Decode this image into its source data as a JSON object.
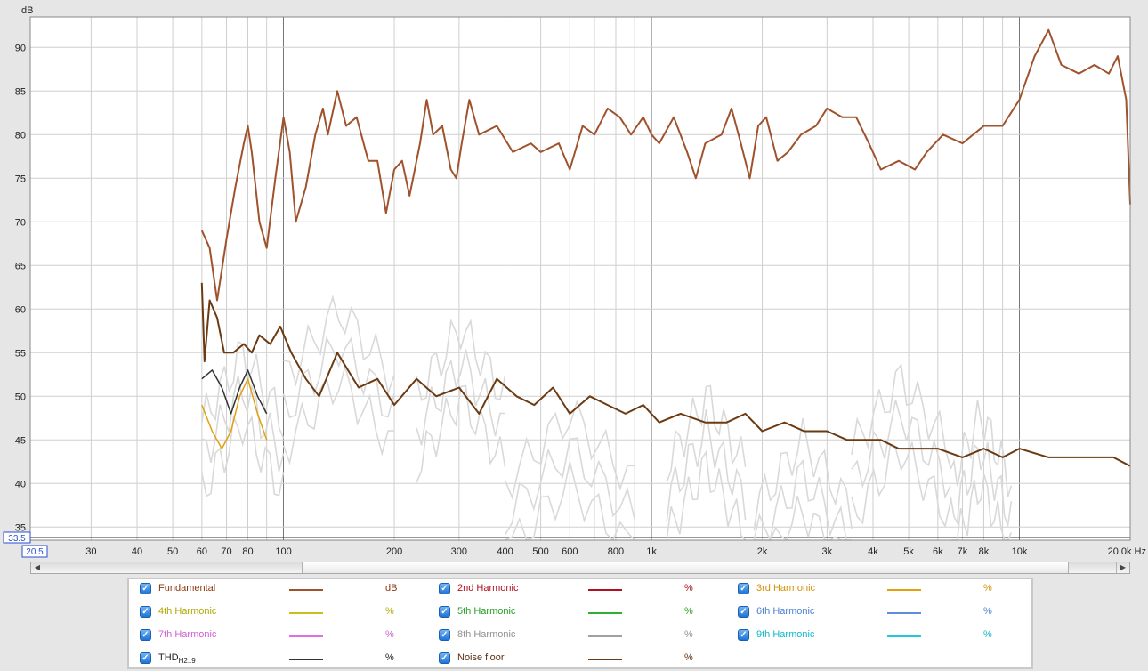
{
  "chart_data": {
    "type": "line",
    "y_unit": "dB",
    "y_ticks": [
      35,
      40,
      45,
      50,
      55,
      60,
      65,
      70,
      75,
      80,
      85,
      90
    ],
    "ylim": [
      33.5,
      93.5
    ],
    "x_scale": "log",
    "xlim": [
      20.5,
      20000
    ],
    "x_ticks": [
      {
        "v": 30,
        "label": "30"
      },
      {
        "v": 40,
        "label": "40"
      },
      {
        "v": 50,
        "label": "50"
      },
      {
        "v": 60,
        "label": "60"
      },
      {
        "v": 70,
        "label": "70"
      },
      {
        "v": 80,
        "label": "80"
      },
      {
        "v": 100,
        "label": "100"
      },
      {
        "v": 200,
        "label": "200"
      },
      {
        "v": 300,
        "label": "300"
      },
      {
        "v": 400,
        "label": "400"
      },
      {
        "v": 500,
        "label": "500"
      },
      {
        "v": 600,
        "label": "600"
      },
      {
        "v": 800,
        "label": "800"
      },
      {
        "v": 1000,
        "label": "1k"
      },
      {
        "v": 2000,
        "label": "2k"
      },
      {
        "v": 3000,
        "label": "3k"
      },
      {
        "v": 4000,
        "label": "4k"
      },
      {
        "v": 5000,
        "label": "5k"
      },
      {
        "v": 6000,
        "label": "6k"
      },
      {
        "v": 7000,
        "label": "7k"
      },
      {
        "v": 8000,
        "label": "8k"
      },
      {
        "v": 10000,
        "label": "10k"
      },
      {
        "v": 20000,
        "label": "20.0k Hz"
      }
    ],
    "x_min_label": "20.5",
    "y_min_label": "33.5",
    "series": [
      {
        "name": "Fundamental",
        "color": "#a0522d",
        "points": [
          [
            60,
            69
          ],
          [
            63,
            67
          ],
          [
            66,
            61
          ],
          [
            70,
            68
          ],
          [
            74,
            74
          ],
          [
            78,
            79
          ],
          [
            80,
            81
          ],
          [
            82,
            78
          ],
          [
            86,
            70
          ],
          [
            90,
            67
          ],
          [
            95,
            75
          ],
          [
            100,
            82
          ],
          [
            104,
            78
          ],
          [
            108,
            70
          ],
          [
            115,
            74
          ],
          [
            122,
            80
          ],
          [
            128,
            83
          ],
          [
            132,
            80
          ],
          [
            140,
            85
          ],
          [
            148,
            81
          ],
          [
            158,
            82
          ],
          [
            170,
            77
          ],
          [
            180,
            77
          ],
          [
            190,
            71
          ],
          [
            200,
            76
          ],
          [
            210,
            77
          ],
          [
            220,
            73
          ],
          [
            235,
            79
          ],
          [
            245,
            84
          ],
          [
            255,
            80
          ],
          [
            270,
            81
          ],
          [
            285,
            76
          ],
          [
            295,
            75
          ],
          [
            305,
            79
          ],
          [
            320,
            84
          ],
          [
            340,
            80
          ],
          [
            380,
            81
          ],
          [
            420,
            78
          ],
          [
            470,
            79
          ],
          [
            500,
            78
          ],
          [
            560,
            79
          ],
          [
            600,
            76
          ],
          [
            650,
            81
          ],
          [
            700,
            80
          ],
          [
            760,
            83
          ],
          [
            820,
            82
          ],
          [
            880,
            80
          ],
          [
            950,
            82
          ],
          [
            1000,
            80
          ],
          [
            1050,
            79
          ],
          [
            1150,
            82
          ],
          [
            1250,
            78
          ],
          [
            1320,
            75
          ],
          [
            1400,
            79
          ],
          [
            1550,
            80
          ],
          [
            1650,
            83
          ],
          [
            1750,
            79
          ],
          [
            1850,
            75
          ],
          [
            1950,
            81
          ],
          [
            2050,
            82
          ],
          [
            2200,
            77
          ],
          [
            2350,
            78
          ],
          [
            2550,
            80
          ],
          [
            2800,
            81
          ],
          [
            3000,
            83
          ],
          [
            3300,
            82
          ],
          [
            3600,
            82
          ],
          [
            3900,
            79
          ],
          [
            4200,
            76
          ],
          [
            4700,
            77
          ],
          [
            5200,
            76
          ],
          [
            5600,
            78
          ],
          [
            6200,
            80
          ],
          [
            7000,
            79
          ],
          [
            8000,
            81
          ],
          [
            9000,
            81
          ],
          [
            10000,
            84
          ],
          [
            11000,
            89
          ],
          [
            12000,
            92
          ],
          [
            13000,
            88
          ],
          [
            14500,
            87
          ],
          [
            16000,
            88
          ],
          [
            17500,
            87
          ],
          [
            18500,
            89
          ],
          [
            19500,
            84
          ],
          [
            20000,
            72
          ]
        ]
      },
      {
        "name": "Noise floor",
        "color": "#6b3a12",
        "points": [
          [
            60,
            63
          ],
          [
            61,
            54
          ],
          [
            63,
            61
          ],
          [
            66,
            59
          ],
          [
            69,
            55
          ],
          [
            73,
            55
          ],
          [
            78,
            56
          ],
          [
            82,
            55
          ],
          [
            86,
            57
          ],
          [
            92,
            56
          ],
          [
            98,
            58
          ],
          [
            105,
            55
          ],
          [
            115,
            52
          ],
          [
            125,
            50
          ],
          [
            140,
            55
          ],
          [
            160,
            51
          ],
          [
            180,
            52
          ],
          [
            200,
            49
          ],
          [
            230,
            52
          ],
          [
            260,
            50
          ],
          [
            300,
            51
          ],
          [
            340,
            48
          ],
          [
            380,
            52
          ],
          [
            430,
            50
          ],
          [
            480,
            49
          ],
          [
            540,
            51
          ],
          [
            600,
            48
          ],
          [
            680,
            50
          ],
          [
            760,
            49
          ],
          [
            850,
            48
          ],
          [
            950,
            49
          ],
          [
            1050,
            47
          ],
          [
            1200,
            48
          ],
          [
            1400,
            47
          ],
          [
            1600,
            47
          ],
          [
            1800,
            48
          ],
          [
            2000,
            46
          ],
          [
            2300,
            47
          ],
          [
            2600,
            46
          ],
          [
            3000,
            46
          ],
          [
            3400,
            45
          ],
          [
            3800,
            45
          ],
          [
            4200,
            45
          ],
          [
            4700,
            44
          ],
          [
            5300,
            44
          ],
          [
            6000,
            44
          ],
          [
            7000,
            43
          ],
          [
            8000,
            44
          ],
          [
            9000,
            43
          ],
          [
            10000,
            44
          ],
          [
            12000,
            43
          ],
          [
            14000,
            43
          ],
          [
            16000,
            43
          ],
          [
            18000,
            43
          ],
          [
            20000,
            42
          ]
        ]
      },
      {
        "name": "THD",
        "color": "#333333",
        "points": [
          [
            60,
            52
          ],
          [
            64,
            53
          ],
          [
            68,
            51
          ],
          [
            72,
            48
          ],
          [
            76,
            51
          ],
          [
            80,
            53
          ],
          [
            85,
            50
          ],
          [
            90,
            48
          ]
        ]
      },
      {
        "name": "3rd Harmonic",
        "color": "#e0a010",
        "points": [
          [
            60,
            49
          ],
          [
            64,
            46
          ],
          [
            68,
            44
          ],
          [
            72,
            46
          ],
          [
            76,
            50
          ],
          [
            80,
            52
          ],
          [
            85,
            48
          ],
          [
            90,
            45
          ]
        ]
      }
    ]
  },
  "legend": [
    {
      "name": "Fundamental",
      "sub": "",
      "color": "#a0522d",
      "unit": "dB",
      "text_color": "#8b3a0e"
    },
    {
      "name": "2nd Harmonic",
      "sub": "",
      "color": "#b01020",
      "unit": "%",
      "text_color": "#b01020"
    },
    {
      "name": "3rd Harmonic",
      "sub": "",
      "color": "#e0a010",
      "unit": "%",
      "text_color": "#d4930a"
    },
    {
      "name": "4th Harmonic",
      "sub": "",
      "color": "#c8c020",
      "unit": "%",
      "text_color": "#b0a800"
    },
    {
      "name": "5th Harmonic",
      "sub": "",
      "color": "#30b030",
      "unit": "%",
      "text_color": "#22a022"
    },
    {
      "name": "6th Harmonic",
      "sub": "",
      "color": "#5b8fd8",
      "unit": "%",
      "text_color": "#4a7fd0"
    },
    {
      "name": "7th Harmonic",
      "sub": "",
      "color": "#e070e0",
      "unit": "%",
      "text_color": "#d060d0"
    },
    {
      "name": "8th Harmonic",
      "sub": "",
      "color": "#a0a0a0",
      "unit": "%",
      "text_color": "#909090"
    },
    {
      "name": "9th Harmonic",
      "sub": "",
      "color": "#20c8d8",
      "unit": "%",
      "text_color": "#10b8c8"
    },
    {
      "name": "THD",
      "sub": "H2..9",
      "color": "#333333",
      "unit": "%",
      "text_color": "#222222"
    },
    {
      "name": "Noise floor",
      "sub": "",
      "color": "#6b3a12",
      "unit": "%",
      "text_color": "#5a2e0c"
    }
  ],
  "scrollbar": {
    "left_arrow": "◀",
    "right_arrow": "▶"
  },
  "checkbox_mark": "✓"
}
